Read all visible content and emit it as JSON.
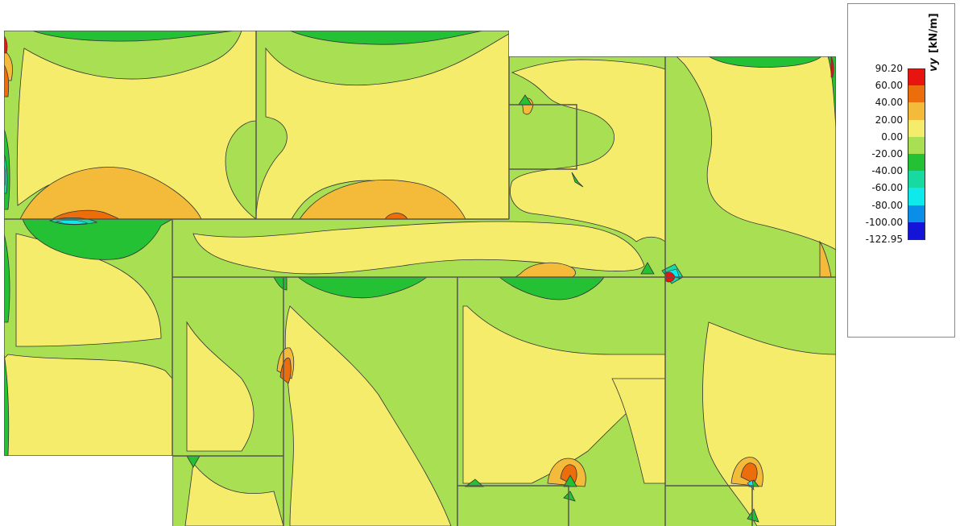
{
  "legend": {
    "quantity_symbol": "vy",
    "unit": "[kN/m]",
    "ticks": [
      "90.20",
      "60.00",
      "40.00",
      "20.00",
      "0.00",
      "-20.00",
      "-40.00",
      "-60.00",
      "-80.00",
      "-100.00",
      "-122.95"
    ],
    "band_colors": [
      "#e8140f",
      "#ec6d0c",
      "#f4bb3b",
      "#f6ec6c",
      "#a9df52",
      "#25c135",
      "#18d9a0",
      "#0ee9ec",
      "#0b8ee9",
      "#1414d9"
    ]
  },
  "palette": {
    "band_20_40": "#f4bb3b",
    "band_0_20": "#f6ec6c",
    "band_m20_0": "#a9df52",
    "band_m40_m20": "#25c135",
    "band_40_60": "#ec6d0c",
    "band_60_90": "#e8140f",
    "band_m60_m40": "#18d9a0",
    "band_m80_m60": "#0ee9ec",
    "edge": "#555555"
  }
}
